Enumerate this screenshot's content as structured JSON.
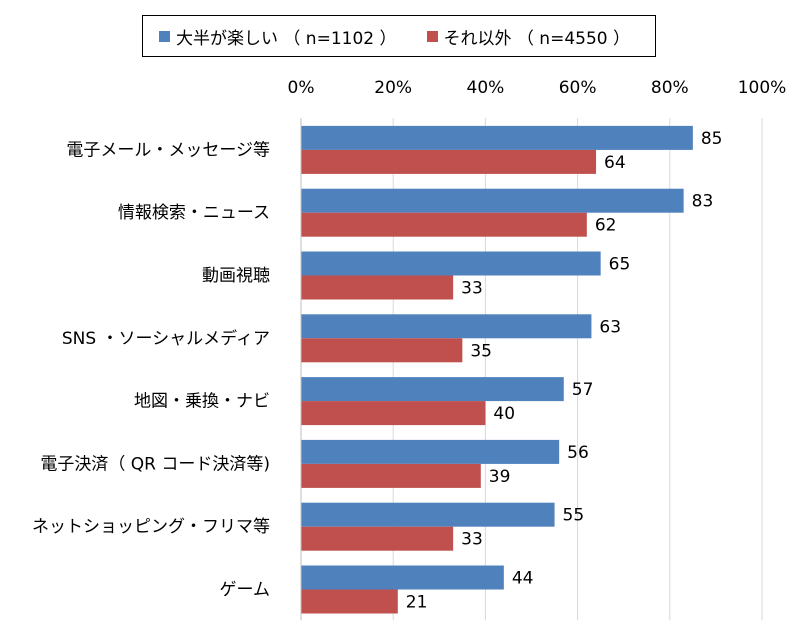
{
  "chart_data": {
    "type": "bar",
    "orientation": "horizontal",
    "categories": [
      "電子メール・メッセージ等",
      "情報検索・ニュース",
      "動画視聴",
      "SNS ・ソーシャルメディア",
      "地図・乗換・ナビ",
      "電子決済（ QR コード決済等)",
      "ネットショッピング・フリマ等",
      "ゲーム"
    ],
    "series": [
      {
        "name": "大半が楽しい （ n=1102 ）",
        "color": "#4f81bd",
        "values": [
          85,
          83,
          65,
          63,
          57,
          56,
          55,
          44
        ]
      },
      {
        "name": "それ以外 （ n=4550 ）",
        "color": "#c0504d",
        "values": [
          64,
          62,
          33,
          35,
          40,
          39,
          33,
          21
        ]
      }
    ],
    "xlim": [
      0,
      100
    ],
    "xticks": [
      "0%",
      "20%",
      "40%",
      "60%",
      "80%",
      "100%"
    ],
    "xtick_values": [
      0,
      20,
      40,
      60,
      80,
      100
    ],
    "axis_position": "top",
    "grid": true,
    "legend_position": "top"
  }
}
